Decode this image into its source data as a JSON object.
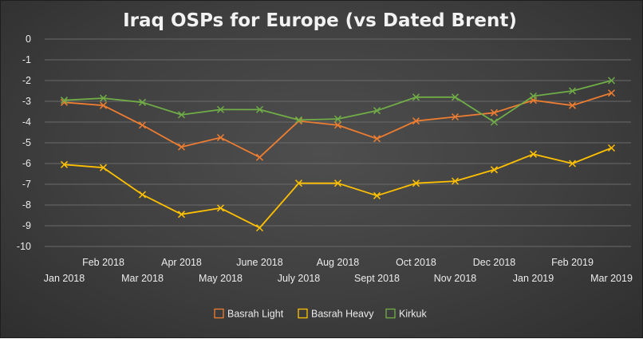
{
  "chart_data": {
    "type": "line",
    "title": "Iraq OSPs for Europe (vs Dated Brent)",
    "xlabel": "",
    "ylabel": "",
    "x": [
      "Jan 2018",
      "Feb 2018",
      "Mar 2018",
      "Apr 2018",
      "May 2018",
      "June 2018",
      "July 2018",
      "Aug 2018",
      "Sept 2018",
      "Oct 2018",
      "Nov 2018",
      "Dec 2018",
      "Jan 2019",
      "Feb 2019",
      "Mar 2019"
    ],
    "ylim": [
      -10,
      0
    ],
    "yticks": [
      0,
      -1,
      -2,
      -3,
      -4,
      -5,
      -6,
      -7,
      -8,
      -9,
      -10
    ],
    "grid": true,
    "legend_position": "bottom",
    "series": [
      {
        "name": "Basrah Light",
        "color": "#ed7d31",
        "values": [
          -3.05,
          -3.2,
          -4.15,
          -5.2,
          -4.75,
          -5.7,
          -3.95,
          -4.15,
          -4.8,
          -3.95,
          -3.75,
          -3.55,
          -2.95,
          -3.2,
          -2.6
        ]
      },
      {
        "name": "Basrah Heavy",
        "color": "#ffc000",
        "values": [
          -6.05,
          -6.2,
          -7.5,
          -8.45,
          -8.15,
          -9.1,
          -6.95,
          -6.95,
          -7.55,
          -6.95,
          -6.85,
          -6.3,
          -5.55,
          -6.0,
          -5.25
        ]
      },
      {
        "name": "Kirkuk",
        "color": "#70ad47",
        "values": [
          -2.95,
          -2.85,
          -3.05,
          -3.65,
          -3.4,
          -3.4,
          -3.9,
          -3.85,
          -3.45,
          -2.8,
          -2.8,
          -4.0,
          -2.75,
          -2.5,
          -2.0
        ]
      }
    ]
  }
}
